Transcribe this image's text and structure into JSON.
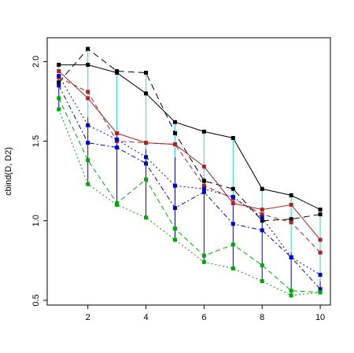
{
  "chart_data": {
    "type": "line",
    "xlabel": "",
    "ylabel": "cbind(D, D2)",
    "x": [
      1,
      2,
      3,
      4,
      5,
      6,
      7,
      8,
      9,
      10
    ],
    "xlim": [
      0.6,
      10.35
    ],
    "ylim": [
      0.47,
      2.15
    ],
    "xticks": [
      2,
      4,
      6,
      8,
      10
    ],
    "yticks": [
      0.5,
      1.0,
      1.5,
      2.0
    ],
    "xtick_labels": [
      "2",
      "4",
      "6",
      "8",
      "10"
    ],
    "ytick_labels": [
      "0.5",
      "1.0",
      "1.5",
      "2.0"
    ],
    "grid": false,
    "series": [
      {
        "color": "#000000",
        "dash": "",
        "values": [
          1.98,
          1.98,
          1.93,
          1.8,
          1.62,
          1.56,
          1.52,
          1.2,
          1.16,
          1.07
        ]
      },
      {
        "color": "#000000",
        "dash": "8,5",
        "values": [
          1.87,
          2.08,
          1.94,
          1.93,
          1.55,
          1.25,
          1.2,
          1.0,
          1.01,
          1.04
        ]
      },
      {
        "color": "#b22222",
        "dash": "",
        "values": [
          1.94,
          1.77,
          1.55,
          1.49,
          1.48,
          1.34,
          1.11,
          1.07,
          1.1,
          0.88
        ]
      },
      {
        "color": "#b22222",
        "dash": "6,4",
        "values": [
          1.9,
          1.81,
          1.5,
          1.49,
          1.48,
          1.22,
          1.14,
          1.04,
          0.99,
          0.8
        ]
      },
      {
        "color": "#0000cd",
        "dash": "2,3",
        "values": [
          1.91,
          1.6,
          1.51,
          1.4,
          1.22,
          1.2,
          1.15,
          1.02,
          0.77,
          0.66
        ]
      },
      {
        "color": "#0000cd",
        "dash": "6,3,2,3",
        "values": [
          1.85,
          1.49,
          1.46,
          1.36,
          1.08,
          1.18,
          0.98,
          0.94,
          0.77,
          0.57
        ]
      },
      {
        "color": "#00aa00",
        "dash": "6,4",
        "values": [
          1.77,
          1.38,
          1.11,
          1.26,
          0.95,
          0.78,
          0.85,
          0.72,
          0.56,
          0.55
        ]
      },
      {
        "color": "#00aa00",
        "dash": "2,3",
        "values": [
          1.7,
          1.23,
          1.1,
          1.02,
          0.88,
          0.74,
          0.7,
          0.62,
          0.53,
          0.55
        ]
      }
    ],
    "range_segments": {
      "upper_color": "#40e0e0",
      "lower_color": "#0000cd",
      "split": [
        1.92,
        1.65,
        1.55,
        1.45,
        1.4,
        1.27,
        1.13,
        1.02,
        0.8,
        0.62
      ]
    }
  }
}
